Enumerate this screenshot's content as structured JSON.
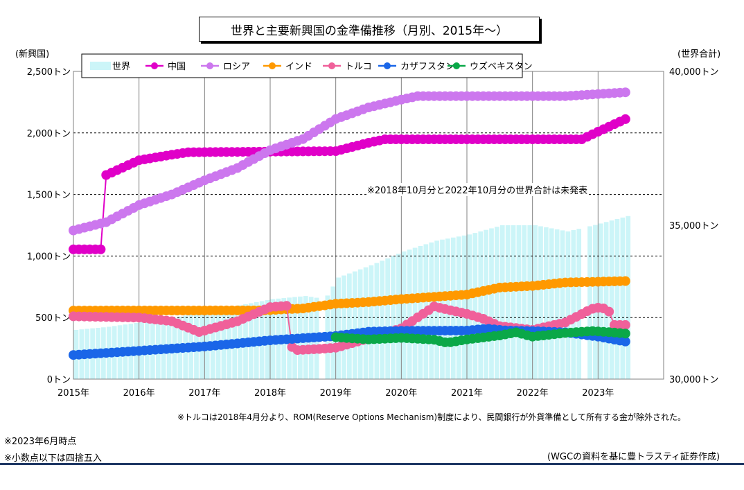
{
  "chart_data": {
    "type": "line",
    "title": "世界と主要新興国の金準備推移（月別、2015年～）",
    "ylabel_left": "(新興国)",
    "ylabel_right": "(世界合計)",
    "ylim_left": [
      0,
      2500
    ],
    "ylim_right": [
      30000,
      40000
    ],
    "left_ticks": [
      "0トン",
      "500トン",
      "1,000トン",
      "1,500トン",
      "2,000トン",
      "2,500トン"
    ],
    "right_ticks": [
      "30,000トン",
      "35,000トン",
      "40,000トン"
    ],
    "x_labels": [
      "2015年",
      "2016年",
      "2017年",
      "2018年",
      "2019年",
      "2020年",
      "2021年",
      "2022年",
      "2023年"
    ],
    "grid": true,
    "legend_position": "top-left",
    "annotation": "※2018年10月分と2022年10月分の世界合計は未発表",
    "world": {
      "name": "世界",
      "color": "#ccf5f8",
      "anchors": [
        [
          2015.0,
          31600
        ],
        [
          2015.5,
          31700
        ],
        [
          2016.0,
          31850
        ],
        [
          2016.5,
          32000
        ],
        [
          2017.0,
          32200
        ],
        [
          2017.5,
          32400
        ],
        [
          2018.0,
          32600
        ],
        [
          2018.5,
          32700
        ],
        [
          2018.8,
          32600
        ],
        [
          2019.0,
          33300
        ],
        [
          2019.5,
          33700
        ],
        [
          2020.0,
          34150
        ],
        [
          2020.5,
          34500
        ],
        [
          2021.0,
          34700
        ],
        [
          2021.5,
          35000
        ],
        [
          2022.0,
          35000
        ],
        [
          2022.5,
          34800
        ],
        [
          2022.9,
          35000
        ],
        [
          2023.42,
          35300
        ]
      ],
      "missing": [
        2018.75,
        2022.75
      ]
    },
    "series": [
      {
        "name": "中国",
        "color": "#e000c8",
        "anchors": [
          [
            2015.0,
            1054
          ],
          [
            2015.42,
            1054
          ],
          [
            2015.5,
            1658
          ],
          [
            2016.0,
            1778
          ],
          [
            2016.5,
            1823
          ],
          [
            2016.75,
            1843
          ],
          [
            2019.0,
            1852
          ],
          [
            2019.5,
            1920
          ],
          [
            2019.75,
            1948
          ],
          [
            2022.75,
            1948
          ],
          [
            2023.0,
            2010
          ],
          [
            2023.42,
            2113
          ]
        ]
      },
      {
        "name": "ロシア",
        "color": "#cc77ee",
        "anchors": [
          [
            2015.0,
            1208
          ],
          [
            2015.5,
            1275
          ],
          [
            2016.0,
            1414
          ],
          [
            2016.5,
            1500
          ],
          [
            2017.0,
            1615
          ],
          [
            2017.5,
            1715
          ],
          [
            2018.0,
            1860
          ],
          [
            2018.5,
            1950
          ],
          [
            2019.0,
            2113
          ],
          [
            2019.5,
            2207
          ],
          [
            2020.0,
            2270
          ],
          [
            2020.25,
            2299
          ],
          [
            2022.5,
            2299
          ],
          [
            2023.42,
            2330
          ]
        ]
      },
      {
        "name": "インド",
        "color": "#ff9900",
        "anchors": [
          [
            2015.0,
            557
          ],
          [
            2017.9,
            558
          ],
          [
            2018.5,
            574
          ],
          [
            2019.0,
            612
          ],
          [
            2019.5,
            626
          ],
          [
            2020.0,
            650
          ],
          [
            2020.5,
            668
          ],
          [
            2021.0,
            687
          ],
          [
            2021.5,
            744
          ],
          [
            2022.0,
            757
          ],
          [
            2022.5,
            785
          ],
          [
            2023.0,
            791
          ],
          [
            2023.42,
            797
          ]
        ]
      },
      {
        "name": "トルコ",
        "color": "#f0609a",
        "anchors": [
          [
            2015.0,
            510
          ],
          [
            2016.0,
            500
          ],
          [
            2016.5,
            470
          ],
          [
            2016.92,
            382
          ],
          [
            2017.5,
            470
          ],
          [
            2018.0,
            585
          ],
          [
            2018.25,
            595
          ],
          [
            2018.34,
            234
          ],
          [
            2018.75,
            245
          ],
          [
            2019.0,
            255
          ],
          [
            2019.5,
            330
          ],
          [
            2020.0,
            413
          ],
          [
            2020.5,
            590
          ],
          [
            2020.7,
            565
          ],
          [
            2021.0,
            530
          ],
          [
            2021.25,
            490
          ],
          [
            2021.5,
            430
          ],
          [
            2022.0,
            400
          ],
          [
            2022.5,
            460
          ],
          [
            2022.9,
            570
          ],
          [
            2023.0,
            580
          ],
          [
            2023.15,
            570
          ],
          [
            2023.25,
            440
          ],
          [
            2023.42,
            440
          ]
        ]
      },
      {
        "name": "カザフスタン",
        "color": "#1a66e8",
        "anchors": [
          [
            2015.0,
            196
          ],
          [
            2016.0,
            230
          ],
          [
            2017.0,
            265
          ],
          [
            2018.0,
            315
          ],
          [
            2019.0,
            350
          ],
          [
            2019.5,
            385
          ],
          [
            2020.0,
            392
          ],
          [
            2021.0,
            394
          ],
          [
            2021.3,
            410
          ],
          [
            2021.6,
            395
          ],
          [
            2022.0,
            390
          ],
          [
            2022.5,
            380
          ],
          [
            2023.0,
            345
          ],
          [
            2023.42,
            305
          ]
        ]
      },
      {
        "name": "ウズベキスタン",
        "color": "#0aa848",
        "anchors": [
          [
            2019.0,
            340
          ],
          [
            2019.5,
            322
          ],
          [
            2020.0,
            335
          ],
          [
            2020.5,
            320
          ],
          [
            2020.7,
            295
          ],
          [
            2021.0,
            322
          ],
          [
            2021.5,
            355
          ],
          [
            2021.75,
            380
          ],
          [
            2022.0,
            345
          ],
          [
            2022.5,
            375
          ],
          [
            2022.92,
            390
          ],
          [
            2023.2,
            380
          ],
          [
            2023.42,
            370
          ]
        ]
      }
    ]
  },
  "notes": {
    "turkey": "※トルコは2018年4月分より、ROM(Reserve Options Mechanism)制度により、民間銀行が外貨準備として所有する金が除外された。",
    "as_of": "※2023年6月時点",
    "rounding": "※小数点以下は四捨五入",
    "source": "(WGCの資料を基に豊トラスティ証券作成)"
  }
}
